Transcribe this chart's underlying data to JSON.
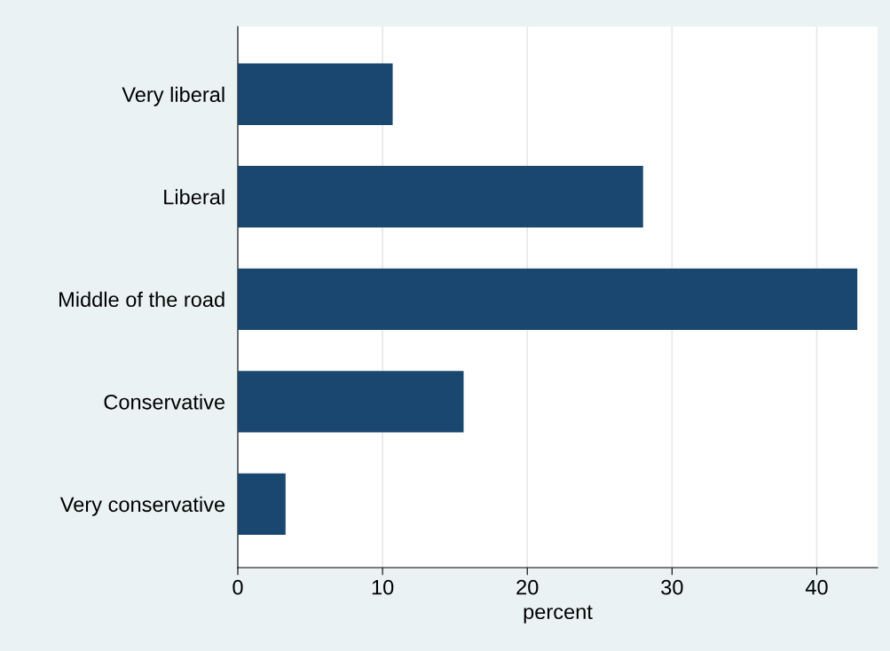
{
  "chart_data": {
    "type": "bar",
    "orientation": "horizontal",
    "categories": [
      "Very liberal",
      "Liberal",
      "Middle of the road",
      "Conservative",
      "Very conservative"
    ],
    "values": [
      10.7,
      28.0,
      42.8,
      15.6,
      3.3
    ],
    "color": "#1a476f",
    "xlabel": "percent",
    "xlim": [
      0,
      44.2
    ],
    "xticks": [
      0,
      10,
      20,
      30,
      40
    ],
    "grid": "x",
    "legend": false
  }
}
